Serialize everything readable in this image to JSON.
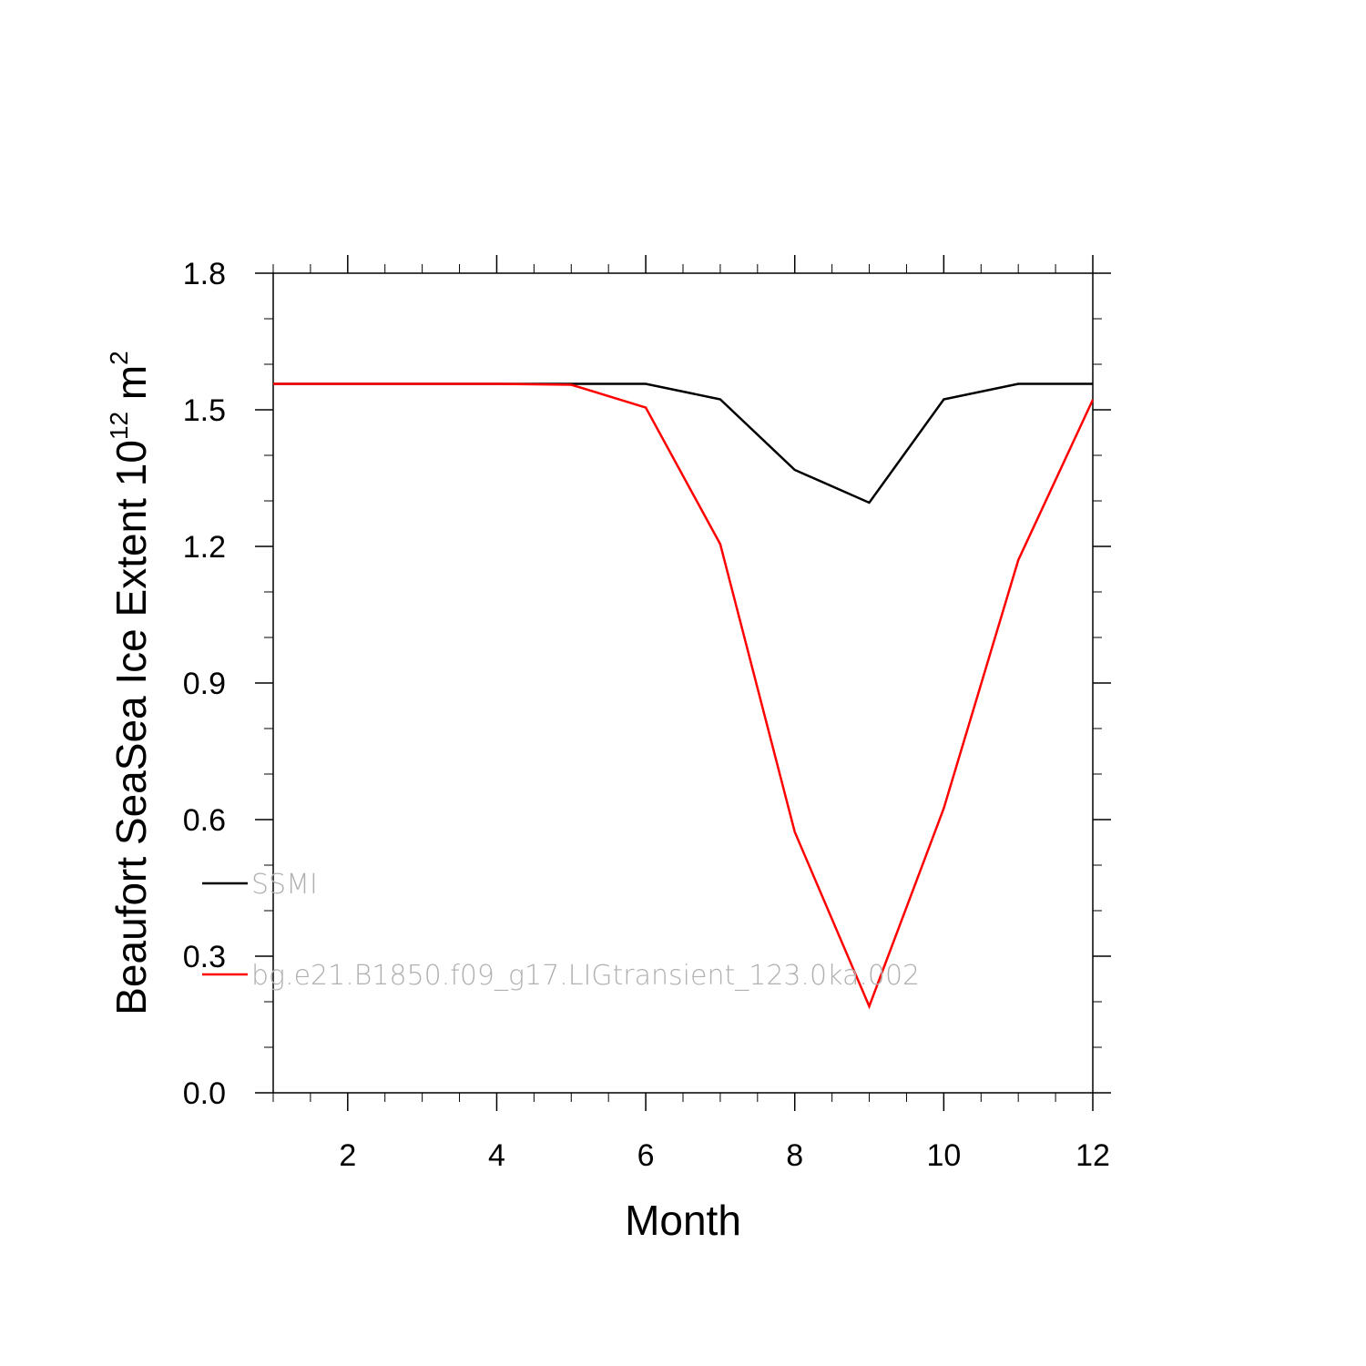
{
  "chart_data": {
    "type": "line",
    "xlabel": "Month",
    "ylabel": "Beaufort SeaSea Ice Extent 10",
    "ylabel_exponent": "12",
    "ylabel_unit": " m",
    "ylabel_unit_exponent": "2",
    "xlim": [
      1,
      12
    ],
    "ylim": [
      0.0,
      1.8
    ],
    "xticks": [
      "2",
      "4",
      "6",
      "8",
      "10",
      "12"
    ],
    "yticks": [
      "0.0",
      "0.3",
      "0.6",
      "0.9",
      "1.2",
      "1.5",
      "1.8"
    ],
    "x": [
      1,
      2,
      3,
      4,
      5,
      6,
      7,
      8,
      9,
      10,
      11,
      12
    ],
    "series": [
      {
        "name": "SSMI",
        "color": "#000000",
        "values": [
          1.557,
          1.557,
          1.557,
          1.557,
          1.557,
          1.557,
          1.523,
          1.368,
          1.296,
          1.523,
          1.557,
          1.557
        ]
      },
      {
        "name": "bg.e21.B1850.f09_g17.LIGtransient_123.0ka.002",
        "color": "#ff0000",
        "values": [
          1.557,
          1.557,
          1.557,
          1.557,
          1.555,
          1.505,
          1.205,
          0.573,
          0.19,
          0.625,
          1.17,
          1.522
        ]
      }
    ],
    "legend": "lower-left",
    "grid": false
  }
}
